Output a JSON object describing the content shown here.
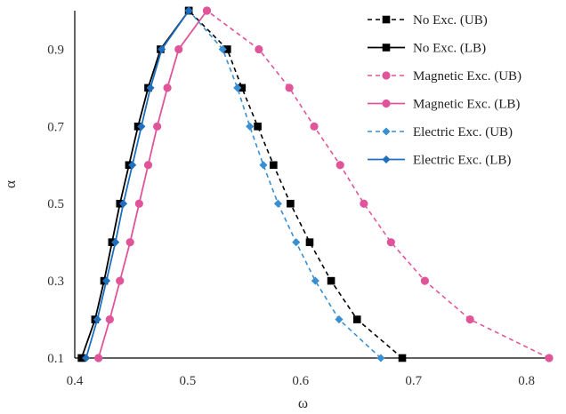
{
  "chart_data": {
    "type": "line",
    "xlabel": "ω",
    "ylabel": "α",
    "xlim": [
      0.4,
      0.82
    ],
    "ylim": [
      0.1,
      1.0
    ],
    "x_ticks": [
      "0.4",
      "0.5",
      "0.6",
      "0.7",
      "0.8"
    ],
    "y_ticks": [
      "0.1",
      "0.3",
      "0.5",
      "0.7",
      "0.9"
    ],
    "grid": false,
    "legend_position": "right",
    "series": [
      {
        "name": "No Exc. (UB)",
        "color": "#000000",
        "dashed": true,
        "marker": "square",
        "points": [
          [
            0.69,
            0.1
          ],
          [
            0.65,
            0.2
          ],
          [
            0.627,
            0.3
          ],
          [
            0.608,
            0.4
          ],
          [
            0.591,
            0.5
          ],
          [
            0.576,
            0.6
          ],
          [
            0.562,
            0.7
          ],
          [
            0.548,
            0.8
          ],
          [
            0.535,
            0.9
          ],
          [
            0.501,
            1.0
          ]
        ]
      },
      {
        "name": "No Exc. (LB)",
        "color": "#000000",
        "dashed": false,
        "marker": "square",
        "points": [
          [
            0.406,
            0.1
          ],
          [
            0.418,
            0.2
          ],
          [
            0.426,
            0.3
          ],
          [
            0.433,
            0.4
          ],
          [
            0.44,
            0.5
          ],
          [
            0.448,
            0.6
          ],
          [
            0.456,
            0.7
          ],
          [
            0.465,
            0.8
          ],
          [
            0.476,
            0.9
          ],
          [
            0.501,
            1.0
          ]
        ]
      },
      {
        "name": "Magnetic Exc. (UB)",
        "color": "#e0559a",
        "dashed": true,
        "marker": "circle",
        "points": [
          [
            0.82,
            0.1
          ],
          [
            0.75,
            0.2
          ],
          [
            0.71,
            0.3
          ],
          [
            0.68,
            0.4
          ],
          [
            0.656,
            0.5
          ],
          [
            0.635,
            0.6
          ],
          [
            0.612,
            0.7
          ],
          [
            0.59,
            0.8
          ],
          [
            0.563,
            0.9
          ],
          [
            0.517,
            1.0
          ]
        ]
      },
      {
        "name": "Magnetic Exc. (LB)",
        "color": "#e0559a",
        "dashed": false,
        "marker": "circle",
        "points": [
          [
            0.421,
            0.1
          ],
          [
            0.431,
            0.2
          ],
          [
            0.44,
            0.3
          ],
          [
            0.449,
            0.4
          ],
          [
            0.457,
            0.5
          ],
          [
            0.465,
            0.6
          ],
          [
            0.473,
            0.7
          ],
          [
            0.482,
            0.8
          ],
          [
            0.492,
            0.9
          ],
          [
            0.517,
            1.0
          ]
        ]
      },
      {
        "name": "Electric Exc. (UB)",
        "color": "#3a8fd1",
        "dashed": true,
        "marker": "diamond",
        "points": [
          [
            0.671,
            0.1
          ],
          [
            0.634,
            0.2
          ],
          [
            0.613,
            0.3
          ],
          [
            0.596,
            0.4
          ],
          [
            0.58,
            0.5
          ],
          [
            0.567,
            0.6
          ],
          [
            0.555,
            0.7
          ],
          [
            0.544,
            0.8
          ],
          [
            0.531,
            0.9
          ],
          [
            0.501,
            1.0
          ]
        ]
      },
      {
        "name": "Electric Exc. (LB)",
        "color": "#1f6fbf",
        "dashed": false,
        "marker": "diamond",
        "points": [
          [
            0.41,
            0.1
          ],
          [
            0.42,
            0.2
          ],
          [
            0.428,
            0.3
          ],
          [
            0.436,
            0.4
          ],
          [
            0.443,
            0.5
          ],
          [
            0.451,
            0.6
          ],
          [
            0.459,
            0.7
          ],
          [
            0.467,
            0.8
          ],
          [
            0.477,
            0.9
          ],
          [
            0.501,
            1.0
          ]
        ]
      }
    ]
  }
}
